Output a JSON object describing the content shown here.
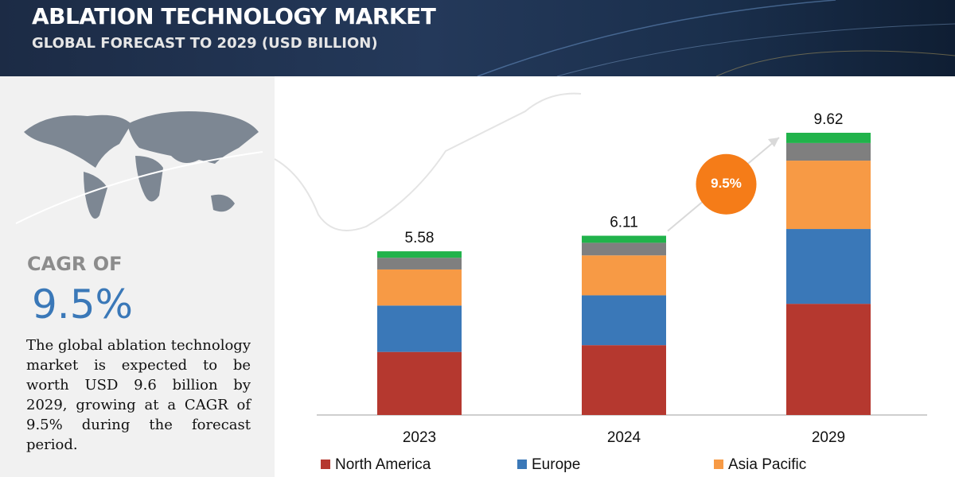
{
  "header": {
    "title": "ABLATION TECHNOLOGY MARKET",
    "subtitle": "GLOBAL FORECAST TO 2029 (USD BILLION)"
  },
  "side": {
    "cagr_label": "CAGR OF",
    "cagr_value": "9.5%",
    "text": "The global ablation technology market is expected to be worth USD 9.6 billion by 2029, growing at a CAGR of 9.5% during the forecast period."
  },
  "chart_data": {
    "type": "bar",
    "stacked": true,
    "categories": [
      "2023",
      "2024",
      "2029"
    ],
    "series": [
      {
        "name": "North America",
        "color": "#b5382f",
        "values": [
          2.15,
          2.38,
          3.79
        ]
      },
      {
        "name": "Europe",
        "color": "#3a78b8",
        "values": [
          1.58,
          1.7,
          2.55
        ]
      },
      {
        "name": "Asia Pacific",
        "color": "#f79a45",
        "values": [
          1.23,
          1.36,
          2.33
        ]
      },
      {
        "color": "#7f7f7f",
        "values": [
          0.4,
          0.43,
          0.6
        ]
      },
      {
        "color": "#21b34b",
        "values": [
          0.22,
          0.24,
          0.35
        ]
      }
    ],
    "totals": [
      5.58,
      6.11,
      9.62
    ],
    "annotation": "9.5%"
  }
}
